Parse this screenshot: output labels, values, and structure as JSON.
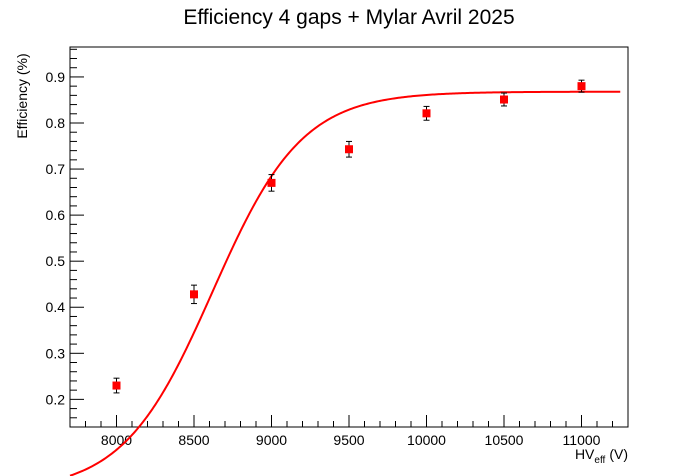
{
  "chart_data": {
    "type": "scatter",
    "title": "Efficiency 4 gaps + Mylar Avril 2025",
    "xlabel": {
      "main": "HV",
      "sub": "eff",
      "unit": "(V)"
    },
    "ylabel": "Efficiency (%)",
    "xlim": [
      7700,
      11300
    ],
    "ylim": [
      0.14,
      0.965
    ],
    "x_ticks": [
      8000,
      8500,
      9000,
      9500,
      10000,
      10500,
      11000
    ],
    "x_tick_labels": [
      "8000",
      "8500",
      "9000",
      "9500",
      "10000",
      "10500",
      "11000"
    ],
    "y_ticks": [
      0.2,
      0.3,
      0.4,
      0.5,
      0.6,
      0.7,
      0.8,
      0.9
    ],
    "y_tick_labels": [
      "0.2",
      "0.3",
      "0.4",
      "0.5",
      "0.6",
      "0.7",
      "0.8",
      "0.9"
    ],
    "grid": false,
    "legend": "none",
    "series": [
      {
        "marker": "square",
        "color": "#ff0000",
        "x": [
          8000,
          8500,
          9000,
          9500,
          10000,
          10500,
          11000
        ],
        "y": [
          0.23,
          0.428,
          0.67,
          0.743,
          0.821,
          0.851,
          0.88
        ],
        "yerr": [
          0.016,
          0.02,
          0.018,
          0.017,
          0.015,
          0.014,
          0.013
        ]
      }
    ],
    "fit": {
      "type": "sigmoid",
      "color": "#ff0000",
      "plateau": 0.868,
      "midpoint": 8620,
      "slope_per_volt": 0.00347,
      "x_range": [
        7700,
        11250
      ]
    }
  }
}
